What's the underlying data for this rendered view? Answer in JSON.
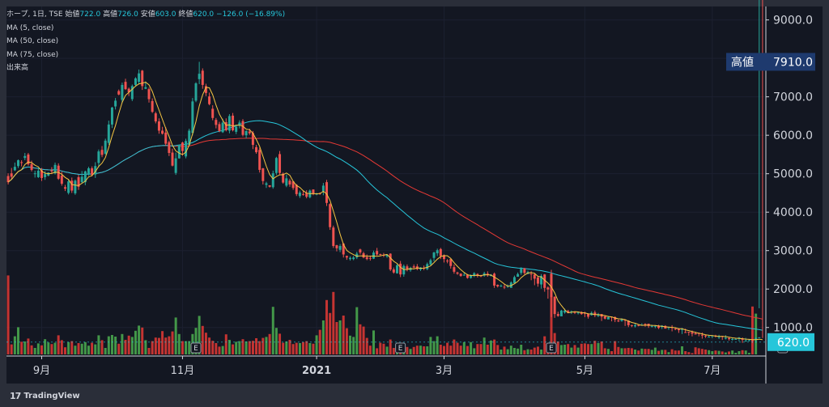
{
  "legend": {
    "symbol": "ホープ, 1日, TSE",
    "open_label": "始値",
    "open": "722.0",
    "high_label": "高値",
    "high": "726.0",
    "low_label": "安値",
    "low": "603.0",
    "close_label": "終値",
    "close": "620.0",
    "change": "−126.0 (−16.89%)",
    "ma5": "MA (5, close)",
    "ma50": "MA (50, close)",
    "ma75": "MA (75, close)",
    "volume": "出来高"
  },
  "badges": {
    "high_label": "高値",
    "high_value": "7910.0",
    "last_value": "620.0"
  },
  "brand": {
    "name": "TradingView",
    "logo": "17"
  },
  "colors": {
    "background": "#131722",
    "frame": "#2a2e39",
    "up": "#26a69a",
    "down": "#ef5350",
    "vol_up": "#4caf50",
    "vol_down": "#e53935",
    "ma5": "#f5c542",
    "ma50": "#26c6da",
    "ma75": "#e53935",
    "axis_text": "#d1d4dc",
    "high_badge": "#1e3a6e",
    "last_badge": "#26c6da"
  },
  "chart_data": {
    "type": "candlestick",
    "x_tick_labels": [
      "9月",
      "11月",
      "2021",
      "3月",
      "5月",
      "7月"
    ],
    "x_tick_index": [
      10,
      52,
      92,
      130,
      172,
      210
    ],
    "y_tick_labels": [
      "1000.0",
      "2000.0",
      "3000.0",
      "4000.0",
      "5000.0",
      "6000.0",
      "7000.0",
      "8000.0",
      "9000.0"
    ],
    "y_ticks": [
      1000,
      2000,
      3000,
      4000,
      5000,
      6000,
      7000,
      8000,
      9000
    ],
    "ylim": [
      300,
      9350
    ],
    "earnings_markers": [
      "E",
      "E",
      "E",
      "E"
    ],
    "earnings_index": [
      56,
      117,
      162,
      231
    ],
    "closes": [
      4780,
      4920,
      5180,
      5350,
      5280,
      5460,
      5250,
      5100,
      5010,
      5080,
      4890,
      4990,
      5030,
      5060,
      5230,
      4870,
      4740,
      4610,
      4800,
      4560,
      4820,
      4660,
      4920,
      5060,
      5140,
      4970,
      5200,
      5580,
      5490,
      5860,
      6280,
      6720,
      6900,
      7060,
      7310,
      7200,
      7120,
      7280,
      7480,
      7610,
      7280,
      7250,
      6940,
      6610,
      6360,
      6120,
      6040,
      5780,
      5540,
      5210,
      5400,
      5750,
      5590,
      5850,
      6120,
      6880,
      7350,
      7600,
      7310,
      7100,
      6810,
      6450,
      6270,
      6110,
      6330,
      6130,
      6500,
      6130,
      6220,
      6330,
      6010,
      6110,
      6050,
      5750,
      5560,
      5100,
      4810,
      4750,
      4660,
      5010,
      5410,
      5020,
      4770,
      4880,
      4720,
      4630,
      4470,
      4510,
      4460,
      4400,
      4560,
      4490,
      4480,
      4480,
      4690,
      4240,
      3610,
      3120,
      3060,
      3120,
      2900,
      2820,
      2810,
      2820,
      2920,
      2950,
      2820,
      2780,
      2800,
      2950,
      2900,
      2890,
      2880,
      2890,
      2510,
      2430,
      2620,
      2380,
      2600,
      2520,
      2550,
      2560,
      2520,
      2560,
      2530,
      2650,
      2750,
      2950,
      3010,
      2860,
      2780,
      2730,
      2600,
      2450,
      2400,
      2340,
      2370,
      2290,
      2360,
      2410,
      2350,
      2330,
      2410,
      2360,
      2370,
      2090,
      2070,
      2090,
      2040,
      2080,
      2170,
      2310,
      2390,
      2530,
      2420,
      2440,
      2380,
      2270,
      2140,
      2340,
      2030,
      1990,
      1790,
      1350,
      1300,
      1440,
      1440,
      1380,
      1420,
      1390,
      1390,
      1350,
      1360,
      1280,
      1380,
      1320,
      1340,
      1280,
      1230,
      1270,
      1260,
      1200,
      1170,
      1210,
      1180,
      1060,
      1040,
      1060,
      1050,
      1070,
      1080,
      1040,
      1040,
      1040,
      990,
      1050,
      970,
      1010,
      990,
      950,
      930,
      960,
      870,
      880,
      840,
      820,
      840,
      790,
      770,
      760,
      790,
      770,
      760,
      760,
      730,
      710,
      700,
      700,
      740,
      690,
      660,
      670,
      660,
      730,
      746,
      620
    ],
    "opens": [
      4940,
      5010,
      5090,
      5200,
      5300,
      5410,
      5500,
      5250,
      5000,
      4910,
      5090,
      4910,
      4950,
      5090,
      5010,
      5210,
      4950,
      4650,
      4500,
      4820,
      4490,
      4910,
      4780,
      4780,
      5000,
      5140,
      4980,
      5280,
      5620,
      5520,
      5800,
      6280,
      6750,
      7150,
      6920,
      7390,
      7210,
      6940,
      7310,
      7390,
      7680,
      7210,
      7200,
      6890,
      6570,
      6360,
      6120,
      6070,
      5820,
      5550,
      5020,
      5400,
      5810,
      5450,
      5750,
      6060,
      6900,
      7460,
      7680,
      7280,
      7010,
      6690,
      6400,
      6290,
      6080,
      6340,
      6120,
      6510,
      6090,
      6250,
      6370,
      6000,
      6100,
      6060,
      5690,
      5620,
      5140,
      4710,
      4700,
      4650,
      5020,
      5510,
      5000,
      4690,
      4820,
      4800,
      4710,
      4420,
      4470,
      4500,
      4390,
      4590,
      4460,
      4500,
      4540,
      4780,
      4210,
      3600,
      3140,
      3020,
      3180,
      2860,
      2780,
      2780,
      2820,
      3030,
      2930,
      2830,
      2810,
      2790,
      2990,
      2910,
      2890,
      2850,
      2920,
      2510,
      2410,
      2660,
      2380,
      2590,
      2490,
      2590,
      2590,
      2510,
      2550,
      2520,
      2640,
      2810,
      2930,
      3040,
      2880,
      2740,
      2780,
      2570,
      2430,
      2400,
      2360,
      2370,
      2290,
      2340,
      2390,
      2350,
      2350,
      2400,
      2340,
      2400,
      2110,
      2090,
      2060,
      2080,
      2030,
      2150,
      2320,
      2420,
      2540,
      2390,
      2400,
      2380,
      2300,
      2120,
      2380,
      2040,
      2400,
      1800,
      1350,
      1290,
      1390,
      1430,
      1420,
      1400,
      1370,
      1400,
      1380,
      1350,
      1320,
      1390,
      1300,
      1350,
      1290,
      1210,
      1280,
      1270,
      1180,
      1170,
      1200,
      1180,
      1060,
      1030,
      1060,
      1060,
      1090,
      1100,
      1030,
      1020,
      1050,
      1010,
      1040,
      990,
      1010,
      970,
      960,
      950,
      880,
      890,
      880,
      850,
      860,
      810,
      790,
      740,
      790,
      790,
      760,
      780,
      730,
      720,
      700,
      680,
      730,
      700,
      650,
      670,
      670,
      690,
      722
    ],
    "highs": [
      5010,
      5150,
      5290,
      5370,
      5350,
      5540,
      5540,
      5340,
      5080,
      5130,
      5150,
      5070,
      5040,
      5170,
      5290,
      5270,
      5050,
      4710,
      4840,
      4900,
      4850,
      4970,
      5070,
      5080,
      5180,
      5190,
      5300,
      5630,
      5720,
      5910,
      6380,
      6740,
      6970,
      7190,
      7370,
      7470,
      7240,
      7320,
      7510,
      7710,
      7700,
      7400,
      7240,
      6960,
      6610,
      6440,
      6220,
      6210,
      5860,
      5650,
      5550,
      5760,
      5830,
      5910,
      6170,
      6970,
      7380,
      7910,
      7740,
      7340,
      7110,
      6780,
      6450,
      6350,
      6430,
      6440,
      6550,
      6580,
      6270,
      6390,
      6420,
      6130,
      6170,
      6110,
      5750,
      5680,
      5150,
      4790,
      4690,
      5080,
      5440,
      5590,
      5030,
      4980,
      4870,
      4810,
      4730,
      4560,
      4560,
      4570,
      4590,
      4590,
      4500,
      4510,
      4760,
      4840,
      4230,
      3650,
      3150,
      3170,
      3200,
      2870,
      2850,
      2860,
      2970,
      3050,
      2970,
      2900,
      2870,
      3000,
      3070,
      2920,
      2940,
      2900,
      2930,
      2560,
      2650,
      2730,
      2640,
      2640,
      2580,
      2640,
      2650,
      2570,
      2610,
      2690,
      2790,
      2970,
      3050,
      3070,
      2900,
      2780,
      2790,
      2640,
      2450,
      2410,
      2430,
      2390,
      2380,
      2440,
      2410,
      2370,
      2450,
      2460,
      2390,
      2430,
      2120,
      2120,
      2130,
      2120,
      2200,
      2350,
      2430,
      2570,
      2550,
      2480,
      2460,
      2420,
      2340,
      2390,
      2390,
      2070,
      2500,
      1810,
      1410,
      1460,
      1490,
      1460,
      1440,
      1410,
      1410,
      1420,
      1410,
      1370,
      1420,
      1440,
      1380,
      1350,
      1300,
      1300,
      1280,
      1290,
      1210,
      1240,
      1210,
      1190,
      1070,
      1100,
      1070,
      1110,
      1110,
      1100,
      1070,
      1060,
      1070,
      1060,
      1060,
      1010,
      1060,
      1000,
      980,
      990,
      970,
      890,
      920,
      890,
      870,
      870,
      810,
      810,
      800,
      810,
      810,
      780,
      800,
      750,
      730,
      730,
      750,
      740,
      730,
      690,
      690,
      740,
      1500,
      726
    ],
    "lows": [
      4720,
      4850,
      5070,
      5150,
      5190,
      5350,
      5210,
      5060,
      4900,
      4890,
      4810,
      4840,
      4930,
      4990,
      4980,
      4840,
      4690,
      4550,
      4460,
      4500,
      4450,
      4580,
      4740,
      4700,
      4950,
      4930,
      4890,
      5170,
      5430,
      5490,
      5750,
      6190,
      6670,
      7040,
      6840,
      7180,
      7020,
      6890,
      7280,
      7320,
      7180,
      7200,
      6850,
      6580,
      6310,
      6040,
      6020,
      5720,
      5460,
      5190,
      4970,
      5390,
      5470,
      5400,
      5720,
      6000,
      6860,
      7330,
      7210,
      7020,
      6780,
      6390,
      6180,
      6080,
      6060,
      6100,
      6050,
      6100,
      6030,
      6180,
      5970,
      5920,
      6010,
      5640,
      5520,
      5030,
      4720,
      4630,
      4640,
      4610,
      4970,
      4980,
      4740,
      4650,
      4660,
      4580,
      4420,
      4370,
      4430,
      4360,
      4360,
      4440,
      4440,
      4450,
      4440,
      4160,
      3540,
      3070,
      2980,
      2960,
      2820,
      2760,
      2740,
      2750,
      2780,
      2900,
      2800,
      2750,
      2740,
      2780,
      2870,
      2870,
      2830,
      2810,
      2470,
      2400,
      2400,
      2310,
      2320,
      2460,
      2450,
      2540,
      2490,
      2470,
      2490,
      2490,
      2600,
      2720,
      2860,
      2780,
      2690,
      2670,
      2530,
      2400,
      2370,
      2320,
      2350,
      2270,
      2270,
      2310,
      2300,
      2310,
      2320,
      2320,
      2330,
      2030,
      2040,
      2050,
      2000,
      2030,
      2130,
      2240,
      2350,
      2370,
      2380,
      2400,
      2230,
      2100,
      2060,
      2010,
      1930,
      1750,
      1270,
      1250,
      1280,
      1370,
      1360,
      1370,
      1350,
      1350,
      1340,
      1330,
      1270,
      1230,
      1310,
      1270,
      1270,
      1170,
      1210,
      1220,
      1160,
      1140,
      1140,
      1150,
      1040,
      1010,
      1010,
      1000,
      1030,
      1060,
      1020,
      990,
      1000,
      980,
      960,
      960,
      980,
      940,
      900,
      930,
      860,
      830,
      860,
      790,
      770,
      820,
      770,
      710,
      730,
      750,
      720,
      740,
      700,
      680,
      690,
      660,
      660,
      680,
      640,
      600,
      630,
      640,
      600,
      603
    ],
    "volumes": [
      2440,
      310,
      560,
      840,
      390,
      400,
      490,
      280,
      200,
      340,
      280,
      470,
      370,
      320,
      360,
      590,
      440,
      220,
      380,
      410,
      270,
      350,
      330,
      380,
      270,
      360,
      310,
      590,
      440,
      200,
      560,
      600,
      550,
      330,
      630,
      450,
      580,
      540,
      730,
      890,
      830,
      440,
      200,
      410,
      520,
      510,
      720,
      520,
      560,
      710,
      1140,
      630,
      410,
      410,
      410,
      630,
      820,
      1190,
      880,
      670,
      520,
      420,
      350,
      240,
      260,
      620,
      450,
      310,
      390,
      410,
      470,
      400,
      410,
      420,
      500,
      410,
      510,
      540,
      630,
      1470,
      820,
      640,
      360,
      400,
      450,
      320,
      360,
      350,
      380,
      410,
      350,
      330,
      590,
      760,
      1050,
      1680,
      1280,
      1930,
      1000,
      1050,
      1200,
      810,
      580,
      540,
      1460,
      930,
      860,
      510,
      270,
      740,
      190,
      360,
      330,
      240,
      460,
      200,
      210,
      290,
      300,
      230,
      170,
      230,
      270,
      270,
      250,
      250,
      540,
      410,
      560,
      300,
      260,
      360,
      270,
      460,
      360,
      270,
      380,
      260,
      380,
      190,
      320,
      320,
      520,
      300,
      430,
      460,
      290,
      150,
      240,
      160,
      270,
      200,
      180,
      300,
      130,
      160,
      150,
      210,
      240,
      150,
      560,
      150,
      2490,
      660,
      400,
      290,
      300,
      320,
      210,
      290,
      210,
      330,
      340,
      320,
      320,
      420,
      350,
      400,
      190,
      170,
      100,
      410,
      230,
      190,
      190,
      200,
      190,
      150,
      120,
      180,
      170,
      170,
      140,
      210,
      110,
      140,
      140,
      70,
      160,
      120,
      120,
      250,
      100,
      70,
      40,
      220,
      190,
      170,
      150,
      130,
      100,
      120,
      110,
      90,
      60,
      90,
      120,
      50,
      100,
      130,
      120,
      50,
      1480,
      1260
    ],
    "volume_ylim": [
      0,
      3000
    ]
  }
}
